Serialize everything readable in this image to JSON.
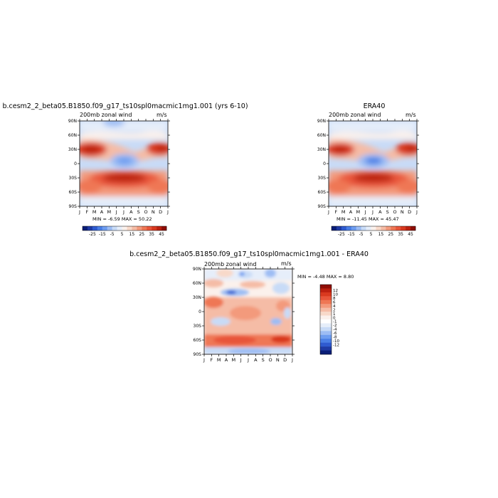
{
  "colors": {
    "scale1": [
      "#0a1e78",
      "#1f3ba5",
      "#2f5bd0",
      "#4a7fe6",
      "#6e9df0",
      "#9dbdf4",
      "#c8dbf7",
      "#e6eefa",
      "#fbf1ec",
      "#f8d9c9",
      "#f5bca6",
      "#f39a7c",
      "#ef7754",
      "#e8553a",
      "#d9391f",
      "#bb2010",
      "#8f0e06"
    ],
    "scale2": [
      "#0a1e78",
      "#1f3ba5",
      "#2f5bd0",
      "#4a7fe6",
      "#6e9df0",
      "#9dbdf4",
      "#c8dbf7",
      "#e6eefa",
      "#ffffff",
      "#fbf1ec",
      "#f8d9c9",
      "#f5bca6",
      "#f39a7c",
      "#ef7754",
      "#e8553a",
      "#d9391f",
      "#bb2010",
      "#8f0e06"
    ]
  },
  "panels": {
    "model": {
      "title": "b.cesm2_2_beta05.B1850.f09_g17_ts10spl0macmic1mg1.001 (yrs 6-10)",
      "left_label": "200mb zonal wind",
      "right_label": "m/s",
      "minmax": "MIN =   -6.59  MAX =   50.22"
    },
    "obs": {
      "title": "ERA40",
      "left_label": "200mb zonal wind",
      "right_label": "m/s",
      "minmax": "MIN =  -11.45  MAX =   45.47"
    },
    "diff": {
      "title": "b.cesm2_2_beta05.B1850.f09_g17_ts10spl0macmic1mg1.001 - ERA40",
      "left_label": "200mb zonal wind",
      "right_label": "m/s",
      "minmax": "MIN =   -4.48  MAX =    8.80"
    }
  },
  "chart_data": [
    {
      "type": "heatmap",
      "title": "b.cesm2_2_beta05.B1850.f09_g17_ts10spl0macmic1mg1.001 (yrs 6-10)",
      "subtitle": "200mb zonal wind",
      "units": "m/s",
      "x_ticks": [
        "J",
        "F",
        "M",
        "A",
        "M",
        "J",
        "J",
        "A",
        "S",
        "O",
        "N",
        "D",
        "J"
      ],
      "y_ticks": [
        "90N",
        "60N",
        "30N",
        "0",
        "30S",
        "60S",
        "90S"
      ],
      "min": -6.59,
      "max": 50.22,
      "colorbar_labels": [
        "-25",
        "-15",
        "-5",
        "5",
        "15",
        "25",
        "35",
        "45"
      ]
    },
    {
      "type": "heatmap",
      "title": "ERA40",
      "subtitle": "200mb zonal wind",
      "units": "m/s",
      "x_ticks": [
        "J",
        "F",
        "M",
        "A",
        "M",
        "J",
        "J",
        "A",
        "S",
        "O",
        "N",
        "D",
        "J"
      ],
      "y_ticks": [
        "90N",
        "60N",
        "30N",
        "0",
        "30S",
        "60S",
        "90S"
      ],
      "min": -11.45,
      "max": 45.47,
      "colorbar_labels": [
        "-25",
        "-15",
        "-5",
        "5",
        "15",
        "25",
        "35",
        "45"
      ]
    },
    {
      "type": "heatmap",
      "title": "b.cesm2_2_beta05.B1850.f09_g17_ts10spl0macmic1mg1.001 - ERA40",
      "subtitle": "200mb zonal wind",
      "units": "m/s",
      "x_ticks": [
        "J",
        "F",
        "M",
        "A",
        "M",
        "J",
        "J",
        "A",
        "S",
        "O",
        "N",
        "D",
        "J"
      ],
      "y_ticks": [
        "90N",
        "60N",
        "30N",
        "0",
        "30S",
        "60S",
        "90S"
      ],
      "min": -4.48,
      "max": 8.8,
      "colorbar_labels": [
        "12",
        "10",
        "8",
        "6",
        "4",
        "2",
        "1",
        "0",
        "-1",
        "-2",
        "-4",
        "-6",
        "-8",
        "-10",
        "-12"
      ]
    }
  ]
}
